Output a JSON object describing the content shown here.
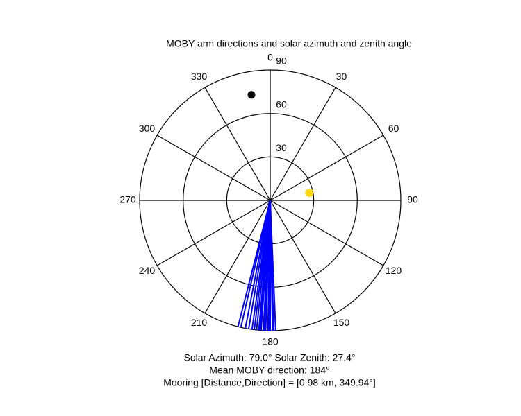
{
  "chart_data": {
    "type": "polar",
    "title": "MOBY arm directions and solar azimuth and zenith angle",
    "rlim": [
      0,
      90
    ],
    "rticks": [
      30,
      60,
      90
    ],
    "thetaticks": [
      0,
      30,
      60,
      90,
      120,
      150,
      180,
      210,
      240,
      270,
      300,
      330
    ],
    "direction": "clockwise",
    "zero": "top",
    "series": [
      {
        "name": "MOBY arm directions",
        "color": "#0000ff",
        "marker": "line",
        "theta": [
          177.6,
          178.5,
          179,
          180,
          180.5,
          181,
          182,
          182.5,
          183,
          184,
          184.5,
          185,
          186,
          187,
          188,
          189.5,
          191,
          193,
          194.3
        ],
        "r": [
          90,
          90,
          90,
          90,
          90,
          90,
          90,
          90,
          90,
          90,
          90,
          90,
          90,
          90,
          90,
          90,
          90,
          90,
          90
        ]
      },
      {
        "name": "Sun",
        "color": "#ffd700",
        "marker": "star",
        "theta": [
          79.0
        ],
        "r": [
          27.4
        ]
      },
      {
        "name": "Mooring",
        "color": "#000000",
        "marker": "dot",
        "theta": [
          349.94
        ],
        "r": [
          74
        ]
      }
    ],
    "annotations": [
      "Solar Azimuth: 79.0°   Solar Zenith: 27.4°",
      "Mean MOBY direction: 184°",
      "Mooring [Distance,Direction] = [0.98 km, 349.94°]"
    ]
  }
}
